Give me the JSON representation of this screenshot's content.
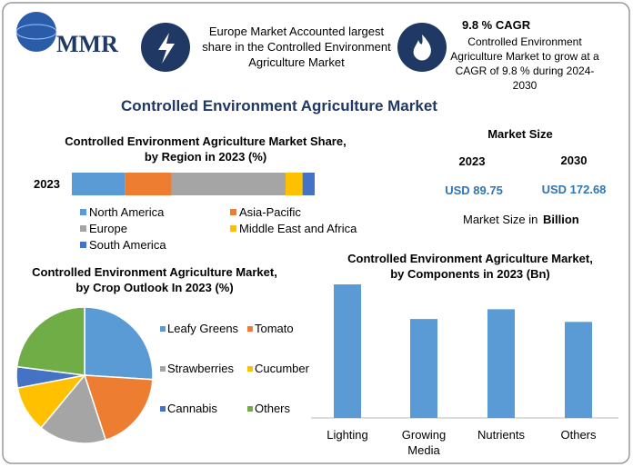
{
  "logo": "MMR",
  "info_1": "Europe Market Accounted largest share in the Controlled Environment Agriculture Market",
  "info_2": {
    "title": "9.8 % CAGR",
    "text": "Controlled Environment Agriculture Market to grow at a CAGR of 9.8 % during 2024-2030"
  },
  "title": "Controlled Environment Agriculture Market",
  "market_size": {
    "title": "Market Size",
    "years": [
      "2023",
      "2030"
    ],
    "values": [
      "USD 89.75",
      "USD 172.68"
    ],
    "note": "Market Size in",
    "unit": "Billion"
  },
  "chart_data": [
    {
      "type": "stacked_bar",
      "title": "Controlled Environment Agriculture Market Share, by Region in 2023 (%)",
      "categories": [
        "2023"
      ],
      "series": [
        {
          "name": "North America",
          "color": "#5b9bd5",
          "values": [
            22
          ]
        },
        {
          "name": "Asia-Pacific",
          "color": "#ed7d31",
          "values": [
            19
          ]
        },
        {
          "name": "Europe",
          "color": "#a5a5a5",
          "values": [
            47
          ]
        },
        {
          "name": "Middle East and Africa",
          "color": "#ffc000",
          "values": [
            7
          ]
        },
        {
          "name": "South America",
          "color": "#4472c4",
          "values": [
            5
          ]
        }
      ]
    },
    {
      "type": "pie",
      "title": "Controlled Environment Agriculture Market, by Crop Outlook In 2023 (%)",
      "categories": [
        "Leafy Greens",
        "Tomato",
        "Strawberries",
        "Cucumber",
        "Cannabis",
        "Others"
      ],
      "values": [
        26,
        19,
        16,
        11,
        5,
        23
      ],
      "colors": [
        "#5b9bd5",
        "#ed7d31",
        "#a5a5a5",
        "#ffc000",
        "#4472c4",
        "#70ad47"
      ]
    },
    {
      "type": "bar",
      "title": "Controlled Environment Agriculture Market, by Components in 2023 (Bn)",
      "categories": [
        "Lighting",
        "Growing Media",
        "Nutrients",
        "Others"
      ],
      "values": [
        27.4,
        20.3,
        22.3,
        19.7
      ],
      "color": "#5b9bd5"
    }
  ]
}
